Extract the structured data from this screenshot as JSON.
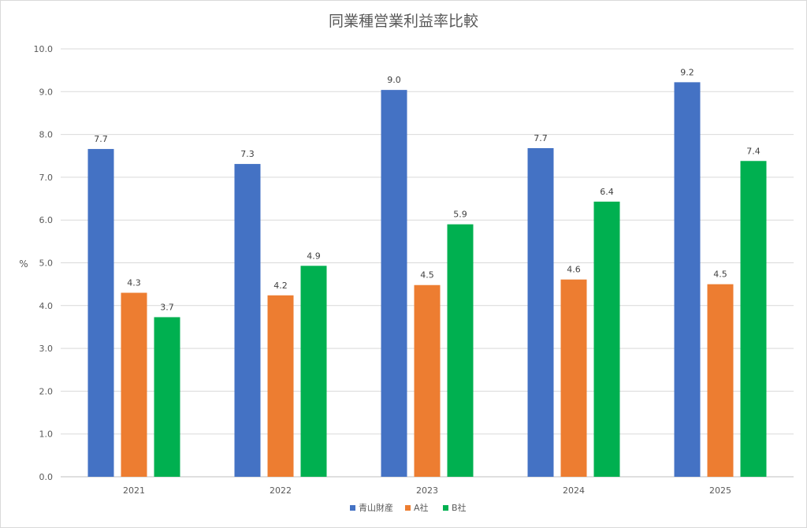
{
  "chart_data": {
    "type": "bar",
    "title": "同業種営業利益率比較",
    "xlabel": "",
    "ylabel": "%",
    "ylim": [
      0,
      10
    ],
    "y_ticks": [
      "0.0",
      "1.0",
      "2.0",
      "3.0",
      "4.0",
      "5.0",
      "6.0",
      "7.0",
      "8.0",
      "9.0",
      "10.0"
    ],
    "grid": true,
    "legend_position": "bottom",
    "categories": [
      "2021",
      "2022",
      "2023",
      "2024",
      "2025"
    ],
    "series": [
      {
        "name": "青山財産",
        "color": "#4472C4",
        "values": [
          7.66,
          7.31,
          9.04,
          7.68,
          9.22
        ],
        "labels": [
          "7.7",
          "7.3",
          "9.0",
          "7.7",
          "9.2"
        ]
      },
      {
        "name": "A社",
        "color": "#ED7D31",
        "values": [
          4.3,
          4.24,
          4.48,
          4.61,
          4.5
        ],
        "labels": [
          "4.3",
          "4.2",
          "4.5",
          "4.6",
          "4.5"
        ]
      },
      {
        "name": "B社",
        "color": "#00B050",
        "values": [
          3.73,
          4.93,
          5.9,
          6.43,
          7.38
        ],
        "labels": [
          "3.7",
          "4.9",
          "5.9",
          "6.4",
          "7.4"
        ]
      }
    ]
  }
}
